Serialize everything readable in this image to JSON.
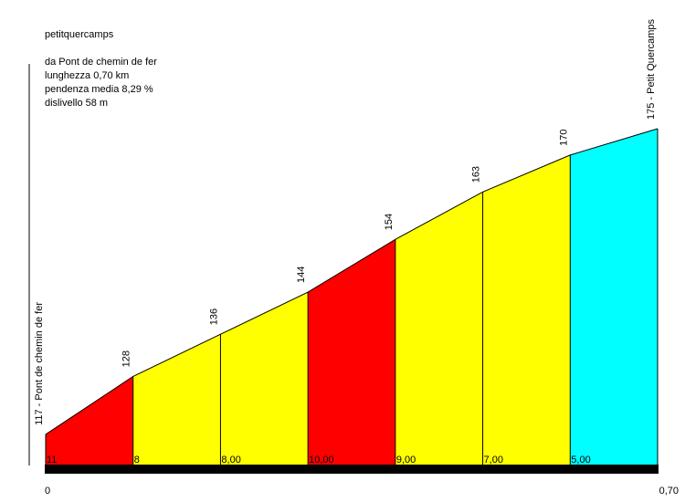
{
  "info": {
    "title": "petitquercamps",
    "from": "da Pont de chemin de fer",
    "length": "lunghezza 0,70 km",
    "grade": "pendenza media 8,29 %",
    "gain": "dislivello 58 m"
  },
  "chart_data": {
    "type": "area",
    "title": "petitquercamps",
    "x": [
      0,
      0.1,
      0.2,
      0.3,
      0.4,
      0.5,
      0.6,
      0.7
    ],
    "elevations": [
      117,
      128,
      136,
      144,
      154,
      163,
      170,
      175
    ],
    "elevation_labels": [
      "117 - Pont de chemin de fer",
      "128",
      "136",
      "144",
      "154",
      "163",
      "170",
      "175 - Petit Quercamps"
    ],
    "segment_grades": [
      "11",
      "8",
      "8,00",
      "10,00",
      "9,00",
      "7,00",
      "5,00"
    ],
    "segment_colors": [
      "#ff0000",
      "#ffff00",
      "#ffff00",
      "#ff0000",
      "#ffff00",
      "#ffff00",
      "#00ffff"
    ],
    "x_tick_labels": [
      "0",
      "0,70"
    ],
    "xlim": [
      0,
      0.7
    ],
    "ylim": [
      111.1,
      175
    ]
  }
}
